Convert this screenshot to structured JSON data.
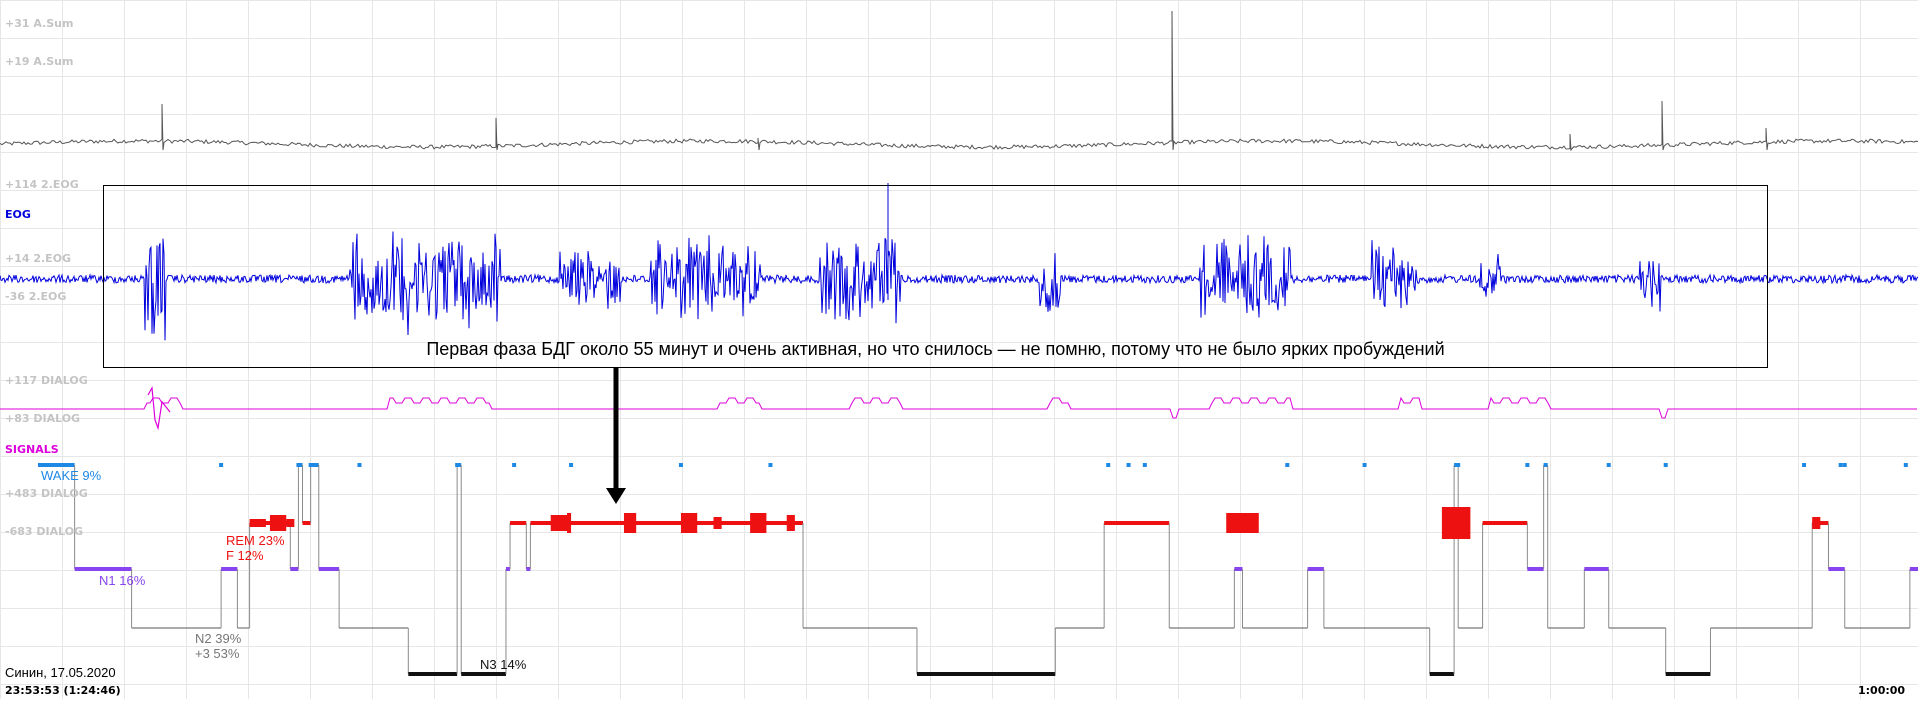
{
  "channels": {
    "asum_1": "+31 A.Sum",
    "asum_2": "+19 A.Sum",
    "eog_1": "+114 2.EOG",
    "eog_title": "EOG",
    "eog_2": "+14 2.EOG",
    "eog_3": "-36 2.EOG",
    "dialog_1": "+117 DIALOG",
    "dialog_2": "+83 DIALOG",
    "signals_title": "SIGNALS",
    "dialog_3": "+483 DIALOG",
    "dialog_4": "-683 DIALOG"
  },
  "colors": {
    "asum": "#555555",
    "eog": "#0000dd",
    "dialog": "#dd00dd",
    "wake": "#1e88e5",
    "rem": "#ee1111",
    "n1": "#8844ee",
    "n2": "#777777",
    "n3": "#111111",
    "grid": "#e6e6e6",
    "transition": "#8a8a8a"
  },
  "annotation": {
    "text": "Первая фаза БДГ около 55 минут и очень активная, но что снилось — не помню, потому что не было ярких пробуждений"
  },
  "meta": {
    "name_date": "Синин, 17.05.2020",
    "start_time": "23:53:53 (1:24:46)",
    "scale": "1:00:00"
  },
  "chart_data": {
    "type": "line",
    "title": "",
    "xlabel": "",
    "ylabel": "",
    "x_unit": "minutes from start",
    "x_range": [
      0,
      462
    ],
    "stage_order": [
      "WAKE",
      "REM",
      "N1",
      "N2",
      "N3"
    ],
    "stage_labels": {
      "WAKE": "WAKE 9%",
      "REM": "REM 23%",
      "F": "F 12%",
      "N1": "N1 16%",
      "N2": "N2 39%",
      "plus3": "+3 53%",
      "N3": "N3 14%"
    },
    "hypnogram": [
      [
        0,
        "WAKE"
      ],
      [
        9,
        "N1"
      ],
      [
        23,
        "N2"
      ],
      [
        45,
        "N1"
      ],
      [
        49,
        "N2"
      ],
      [
        52,
        "REM"
      ],
      [
        62,
        "N1"
      ],
      [
        64,
        "WAKE"
      ],
      [
        65,
        "REM"
      ],
      [
        67,
        "WAKE"
      ],
      [
        69,
        "N1"
      ],
      [
        74,
        "N2"
      ],
      [
        91,
        "N3"
      ],
      [
        103,
        "WAKE"
      ],
      [
        104,
        "N3"
      ],
      [
        115,
        "N1"
      ],
      [
        116,
        "REM"
      ],
      [
        120,
        "N1"
      ],
      [
        121,
        "REM"
      ],
      [
        188,
        "N2"
      ],
      [
        216,
        "N3"
      ],
      [
        250,
        "N2"
      ],
      [
        262,
        "REM"
      ],
      [
        278,
        "N2"
      ],
      [
        294,
        "N1"
      ],
      [
        296,
        "N2"
      ],
      [
        312,
        "N1"
      ],
      [
        316,
        "N2"
      ],
      [
        342,
        "N3"
      ],
      [
        348,
        "WAKE"
      ],
      [
        349,
        "N2"
      ],
      [
        355,
        "REM"
      ],
      [
        366,
        "N1"
      ],
      [
        370,
        "WAKE"
      ],
      [
        371,
        "N2"
      ],
      [
        380,
        "N1"
      ],
      [
        386,
        "N2"
      ],
      [
        400,
        "N3"
      ],
      [
        411,
        "N2"
      ],
      [
        436,
        "REM"
      ],
      [
        440,
        "N1"
      ],
      [
        444,
        "N2"
      ],
      [
        460,
        "N1"
      ],
      [
        462,
        "N1"
      ]
    ],
    "rem_intensity_blocks": [
      [
        52,
        56,
        2
      ],
      [
        57,
        61,
        4
      ],
      [
        61,
        63,
        2
      ],
      [
        126,
        130,
        4
      ],
      [
        130,
        131,
        5
      ],
      [
        144,
        147,
        5
      ],
      [
        158,
        162,
        5
      ],
      [
        166,
        168,
        3
      ],
      [
        175,
        179,
        5
      ],
      [
        184,
        186,
        4
      ],
      [
        292,
        300,
        5
      ],
      [
        345,
        352,
        8
      ],
      [
        436,
        438,
        3
      ]
    ],
    "wake_blips": [
      45,
      64,
      67,
      79,
      103,
      117,
      131,
      158,
      180,
      263,
      268,
      272,
      307,
      326,
      349,
      366,
      386,
      400,
      434,
      443,
      444,
      459
    ]
  }
}
